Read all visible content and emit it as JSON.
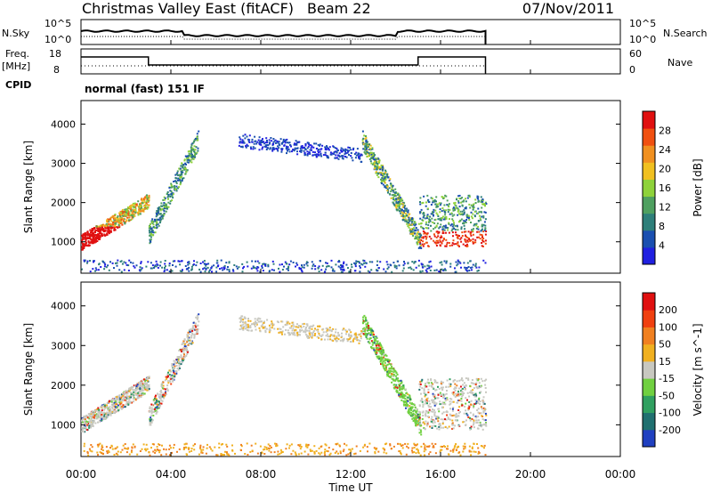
{
  "header": {
    "title": "Christmas Valley East (fitACF)",
    "beam": "Beam 22",
    "date": "07/Nov/2011"
  },
  "noise_panel": {
    "left_label": "N.Sky",
    "right_label": "N.Search",
    "left_ticks": [
      "10^5",
      "10^0"
    ],
    "right_ticks": [
      "10^5",
      "10^0"
    ]
  },
  "freq_panel": {
    "left_label_top": "Freq.",
    "left_label_bottom": "[MHz]",
    "right_label": "Nave",
    "left_ticks": [
      "18",
      "8"
    ],
    "right_ticks": [
      "60",
      "0"
    ],
    "cpid_label": "CPID",
    "cpid_text": "normal (fast) 151 IF"
  },
  "chart_data": [
    {
      "type": "heatmap",
      "name": "power",
      "ylabel": "Slant Range [km]",
      "yticks": [
        1000,
        2000,
        3000,
        4000
      ],
      "ylim": [
        200,
        4600
      ],
      "colorbar_label": "Power [dB]",
      "colorbar_ticks": [
        28,
        24,
        20,
        16,
        12,
        8,
        4
      ],
      "colors": [
        "#2020e0",
        "#1a4fb0",
        "#2e7f7a",
        "#4fa060",
        "#8ed23a",
        "#f0c020",
        "#f09020",
        "#f05010",
        "#e01010"
      ]
    },
    {
      "type": "heatmap",
      "name": "velocity",
      "ylabel": "Slant Range [km]",
      "yticks": [
        1000,
        2000,
        3000,
        4000
      ],
      "ylim": [
        200,
        4600
      ],
      "colorbar_label": "Velocity [m s^-1]",
      "colorbar_ticks": [
        200,
        100,
        50,
        15,
        -15,
        -50,
        -100,
        -200
      ],
      "colors": [
        "#2040c0",
        "#207070",
        "#30a060",
        "#70d040",
        "#c8c8c0",
        "#f0b020",
        "#f08020",
        "#f04010",
        "#e01010"
      ]
    }
  ],
  "xaxis": {
    "label": "Time UT",
    "ticks": [
      "00:00",
      "04:00",
      "08:00",
      "12:00",
      "16:00",
      "20:00",
      "00:00"
    ]
  }
}
